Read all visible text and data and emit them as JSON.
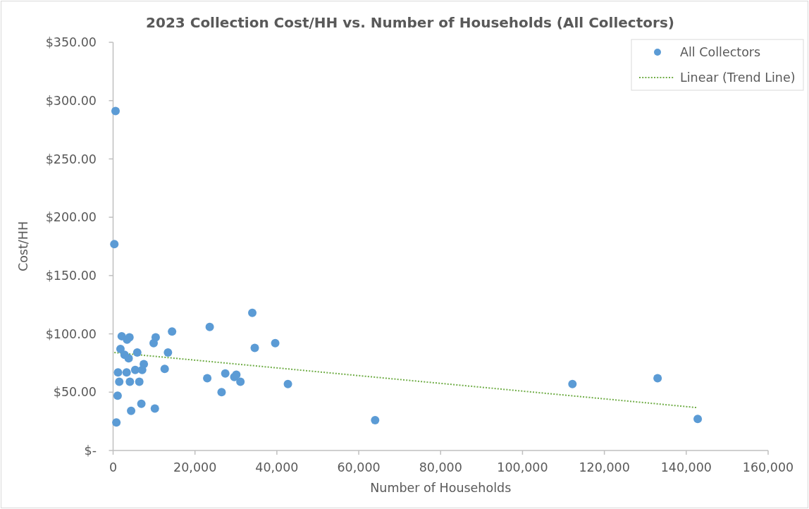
{
  "chart_data": {
    "type": "scatter",
    "title": "2023 Collection Cost/HH vs. Number of Households (All Collectors)",
    "xlabel": "Number of Households",
    "ylabel": "Cost/HH",
    "xlim": [
      0,
      160000
    ],
    "xticks": [
      0,
      {
        "value": 20000,
        "label": "20,000"
      },
      {
        "value": 40000,
        "label": "40,000"
      },
      {
        "value": 60000,
        "label": "60,000"
      },
      {
        "value": 80000,
        "label": "80,000"
      },
      {
        "value": 100000,
        "label": "100,000"
      },
      {
        "value": 120000,
        "label": "120,000"
      },
      {
        "value": 140000,
        "label": "140,000"
      },
      {
        "value": 160000,
        "label": "160,000"
      }
    ],
    "ylim": [
      0,
      350
    ],
    "yticks": [
      {
        "value": 0,
        "label": "$-"
      },
      {
        "value": 50,
        "label": "$50.00"
      },
      {
        "value": 100,
        "label": "$100.00"
      },
      {
        "value": 150,
        "label": "$150.00"
      },
      {
        "value": 200,
        "label": "$200.00"
      },
      {
        "value": 250,
        "label": "$250.00"
      },
      {
        "value": 300,
        "label": "$300.00"
      },
      {
        "value": 350,
        "label": "$350.00"
      }
    ],
    "legend": "top right",
    "series": [
      {
        "name": "All Collectors",
        "type": "scatter",
        "marker": "circle",
        "color": "#5b9bd5",
        "x": [
          600,
          300,
          800,
          1100,
          1200,
          1500,
          1800,
          2100,
          2800,
          3300,
          3400,
          3800,
          4000,
          4100,
          4400,
          5400,
          5900,
          6400,
          6900,
          7100,
          7500,
          9900,
          10200,
          10400,
          12600,
          13400,
          14400,
          23000,
          23600,
          26500,
          27400,
          29600,
          30100,
          31100,
          34000,
          34600,
          39600,
          42700,
          64000,
          112200,
          133000,
          142800
        ],
        "values": [
          291,
          177,
          24,
          47,
          67,
          59,
          87,
          98,
          82,
          67,
          95,
          79,
          97,
          59,
          34,
          69,
          84,
          59,
          40,
          69,
          74,
          92,
          36,
          97,
          70,
          84,
          102,
          62,
          106,
          50,
          66,
          63,
          65,
          59,
          118,
          88,
          92,
          57,
          26,
          57,
          62,
          27
        ]
      },
      {
        "name": "Linear (Trend Line)",
        "type": "line",
        "marker": "none",
        "line_style": "dotted",
        "color": "#70ad47",
        "x": [
          300,
          142800
        ],
        "values": [
          84.0,
          36.7
        ]
      }
    ]
  }
}
